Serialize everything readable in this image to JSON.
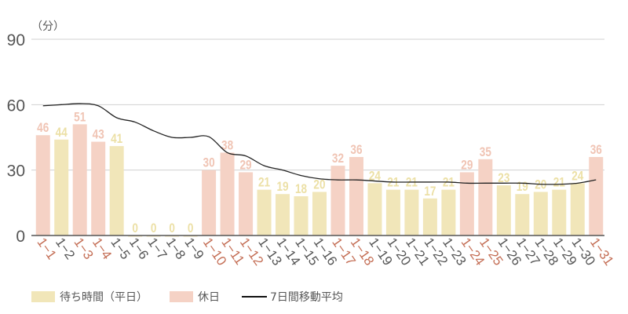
{
  "chart_data": {
    "type": "bar",
    "title": "",
    "unit_label": "（分）",
    "xlabel": "",
    "ylabel": "（分）",
    "ylim": [
      0,
      90
    ],
    "yticks": [
      0,
      30,
      60,
      90
    ],
    "grid": true,
    "legend_position": "bottom-left",
    "categories": [
      "1-1",
      "1-2",
      "1-3",
      "1-4",
      "1-5",
      "1-6",
      "1-7",
      "1-8",
      "1-9",
      "1-10",
      "1-11",
      "1-12",
      "1-13",
      "1-14",
      "1-15",
      "1-16",
      "1-17",
      "1-18",
      "1-19",
      "1-20",
      "1-21",
      "1-22",
      "1-23",
      "1-24",
      "1-25",
      "1-26",
      "1-27",
      "1-28",
      "1-29",
      "1-30",
      "1-31"
    ],
    "holiday": [
      true,
      false,
      true,
      true,
      false,
      false,
      false,
      false,
      false,
      true,
      true,
      true,
      false,
      false,
      false,
      false,
      true,
      true,
      false,
      false,
      false,
      false,
      false,
      true,
      true,
      false,
      false,
      false,
      false,
      false,
      true
    ],
    "series": [
      {
        "name": "待ち時間（平日）/休日",
        "type": "bar",
        "values": [
          46,
          44,
          51,
          43,
          41,
          0,
          0,
          0,
          0,
          30,
          38,
          29,
          21,
          19,
          18,
          20,
          32,
          36,
          24,
          21,
          21,
          17,
          21,
          29,
          35,
          23,
          19,
          20,
          21,
          24,
          36
        ]
      },
      {
        "name": "7日間移動平均",
        "type": "line",
        "values": [
          59.5,
          60,
          60.5,
          59.5,
          54,
          52,
          48,
          45,
          45,
          45.3,
          38,
          36.5,
          32,
          30,
          27.5,
          26,
          25.5,
          25.5,
          25,
          24.5,
          24.5,
          24.5,
          24.5,
          24,
          24,
          24,
          24,
          23.5,
          23.5,
          24,
          25.5
        ]
      }
    ],
    "colors": {
      "weekday_bar": "#f1e6b9",
      "holiday_bar": "#f5d2c5",
      "weekday_label": "#ece0a6",
      "holiday_label": "#f0c4b4",
      "weekday_tick": "#555555",
      "holiday_tick": "#c46e55",
      "line": "#222222",
      "grid": "#d0d0d0",
      "axis": "#555555"
    }
  },
  "legend": {
    "weekday": "待ち時間（平日）",
    "holiday": "休日",
    "moving_average": "7日間移動平均"
  }
}
